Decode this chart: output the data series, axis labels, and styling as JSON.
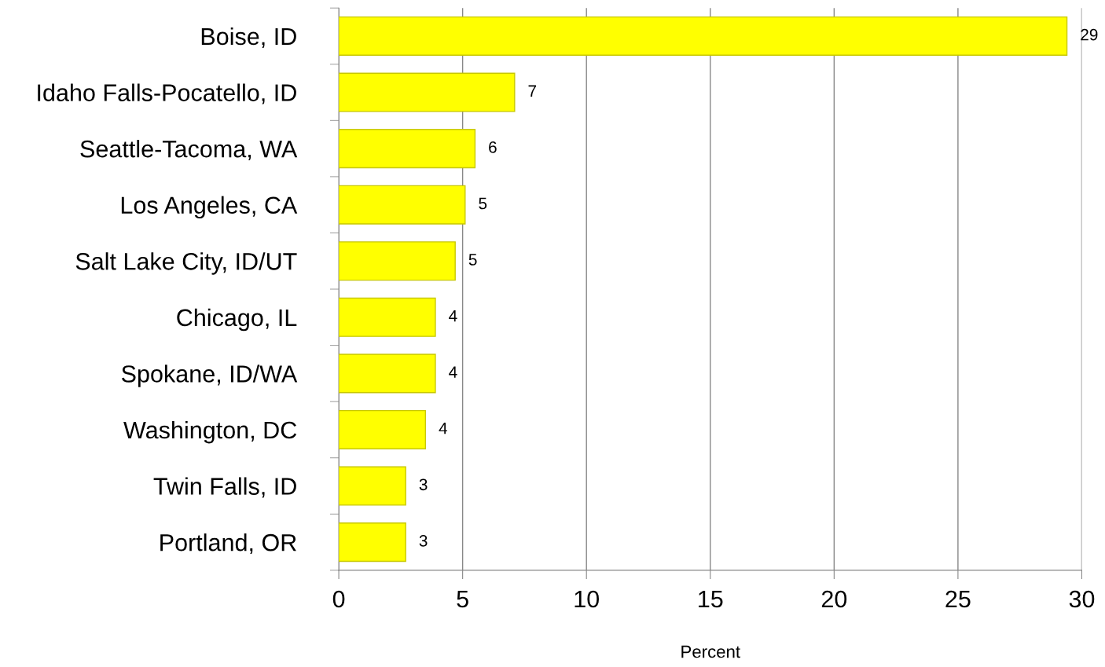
{
  "chart_data": {
    "type": "bar",
    "orientation": "horizontal",
    "xlabel": "Percent",
    "categories": [
      "Boise, ID",
      "Idaho Falls-Pocatello, ID",
      "Seattle-Tacoma, WA",
      "Los Angeles, CA",
      "Salt Lake City, ID/UT",
      "Chicago, IL",
      "Spokane, ID/WA",
      "Washington, DC",
      "Twin Falls, ID",
      "Portland, OR"
    ],
    "values": [
      29.4,
      7.1,
      5.5,
      5.1,
      4.7,
      3.9,
      3.9,
      3.5,
      2.7,
      2.7
    ],
    "value_labels": [
      "29",
      "7",
      "6",
      "5",
      "5",
      "4",
      "4",
      "4",
      "3",
      "3"
    ],
    "color": "#ffff00",
    "xlim": [
      0,
      30
    ],
    "xticks": [
      0,
      5,
      10,
      15,
      20,
      25,
      30
    ],
    "grid": "x"
  }
}
